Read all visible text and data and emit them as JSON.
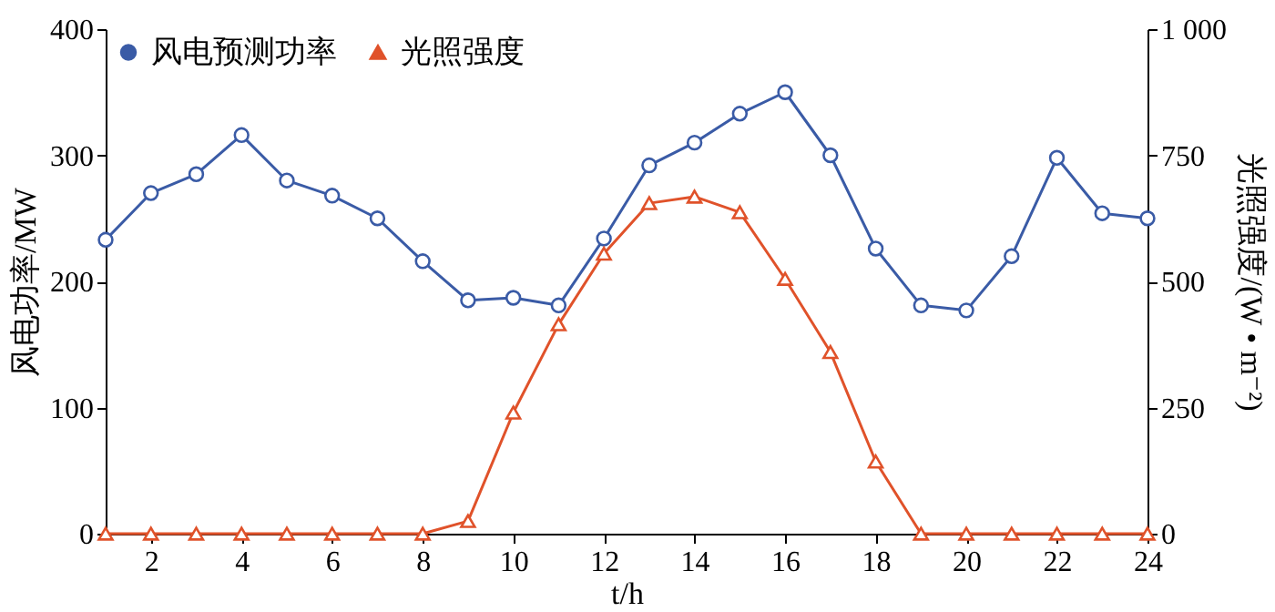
{
  "chart_data": {
    "type": "line",
    "xlabel": "t/h",
    "ylabel": "风电功率/MW",
    "y2label": "光照强度/(W • m⁻²)",
    "x": [
      1,
      2,
      3,
      4,
      5,
      6,
      7,
      8,
      9,
      10,
      11,
      12,
      13,
      14,
      15,
      16,
      17,
      18,
      19,
      20,
      21,
      22,
      23,
      24
    ],
    "series": [
      {
        "name": "风电预测功率",
        "color": "#3a5ba6",
        "marker": "circle",
        "axis": "y",
        "values": [
          233,
          270,
          285,
          316,
          280,
          268,
          250,
          216,
          185,
          187,
          181,
          234,
          292,
          310,
          333,
          350,
          300,
          226,
          181,
          177,
          220,
          298,
          254,
          250
        ]
      },
      {
        "name": "光照强度",
        "color": "#e0522a",
        "marker": "triangle",
        "axis": "y2",
        "values": [
          0,
          0,
          0,
          0,
          0,
          0,
          0,
          0,
          25,
          240,
          415,
          555,
          655,
          668,
          637,
          505,
          360,
          143,
          0,
          0,
          0,
          0,
          0,
          0
        ]
      }
    ],
    "xlim": [
      1,
      24
    ],
    "xticks": [
      2,
      4,
      6,
      8,
      10,
      12,
      14,
      16,
      18,
      20,
      22,
      24
    ],
    "ylim": [
      0,
      400
    ],
    "yticks": [
      0,
      100,
      200,
      300,
      400
    ],
    "y2lim": [
      0,
      1000
    ],
    "y2ticks": [
      0,
      250,
      500,
      750,
      {
        "value": 1000,
        "label": "1 000"
      }
    ],
    "grid": false,
    "legend": "top left",
    "line_style": "solid"
  }
}
